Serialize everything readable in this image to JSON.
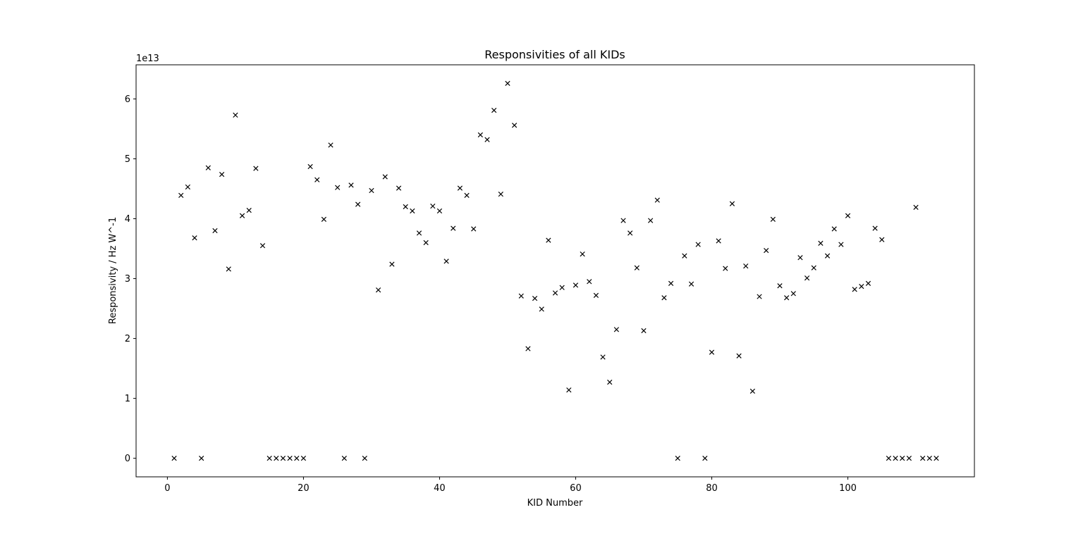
{
  "chart_data": {
    "type": "scatter",
    "title": "Responsivities of all KIDs",
    "xlabel": "KID Number",
    "ylabel": "Responsivity / Hz W^-1",
    "offset_label": "1e13",
    "xlim": [
      -4.6,
      118.6
    ],
    "ylim": [
      -0.31,
      6.57
    ],
    "xticks": [
      0,
      20,
      40,
      60,
      80,
      100
    ],
    "yticks": [
      0,
      1,
      2,
      3,
      4,
      5,
      6
    ],
    "grid": false,
    "marker": "x",
    "marker_color": "#000000",
    "series": [
      {
        "x": [
          1,
          2,
          3,
          4,
          5,
          6,
          7,
          8,
          9,
          10,
          11,
          12,
          13,
          14,
          15,
          16,
          17,
          18,
          19,
          20,
          21,
          22,
          23,
          24,
          25,
          26,
          27,
          28,
          29,
          30,
          31,
          32,
          33,
          34,
          35,
          36,
          37,
          38,
          39,
          40,
          41,
          42,
          43,
          44,
          45,
          46,
          47,
          48,
          49,
          50,
          51,
          52,
          53,
          54,
          55,
          56,
          57,
          58,
          59,
          60,
          61,
          62,
          63,
          64,
          65,
          66,
          67,
          68,
          69,
          70,
          71,
          72,
          73,
          74,
          75,
          76,
          77,
          78,
          79,
          80,
          81,
          82,
          83,
          84,
          85,
          86,
          87,
          88,
          89,
          90,
          91,
          92,
          93,
          94,
          95,
          96,
          97,
          98,
          99,
          100,
          101,
          102,
          103,
          104,
          105,
          106,
          107,
          108,
          109,
          110,
          111,
          112,
          113
        ],
        "y": [
          0,
          4.39,
          4.53,
          3.68,
          0,
          4.85,
          3.8,
          4.74,
          3.16,
          5.73,
          4.05,
          4.14,
          4.84,
          3.55,
          0,
          0,
          0,
          0,
          0,
          0,
          4.87,
          4.65,
          3.99,
          5.23,
          4.52,
          0,
          4.56,
          4.24,
          0,
          4.47,
          2.81,
          4.7,
          3.24,
          4.51,
          4.2,
          4.13,
          3.76,
          3.6,
          4.21,
          4.13,
          3.29,
          3.84,
          4.51,
          4.39,
          3.83,
          5.4,
          5.32,
          5.81,
          4.41,
          6.26,
          5.56,
          2.71,
          1.83,
          2.67,
          2.49,
          3.64,
          2.76,
          2.85,
          1.14,
          2.89,
          3.41,
          2.95,
          2.72,
          1.69,
          1.27,
          2.15,
          3.97,
          3.76,
          3.18,
          2.13,
          3.97,
          4.31,
          2.68,
          2.92,
          0,
          3.38,
          2.91,
          3.57,
          0,
          1.77,
          3.63,
          3.17,
          4.25,
          1.71,
          3.21,
          1.12,
          2.7,
          3.47,
          3.99,
          2.88,
          2.68,
          2.75,
          3.35,
          3.01,
          3.18,
          3.59,
          3.38,
          3.83,
          3.57,
          4.05,
          2.82,
          2.87,
          2.92,
          3.84,
          3.65,
          0,
          0,
          0,
          0,
          4.19,
          0,
          0,
          0
        ]
      }
    ]
  }
}
